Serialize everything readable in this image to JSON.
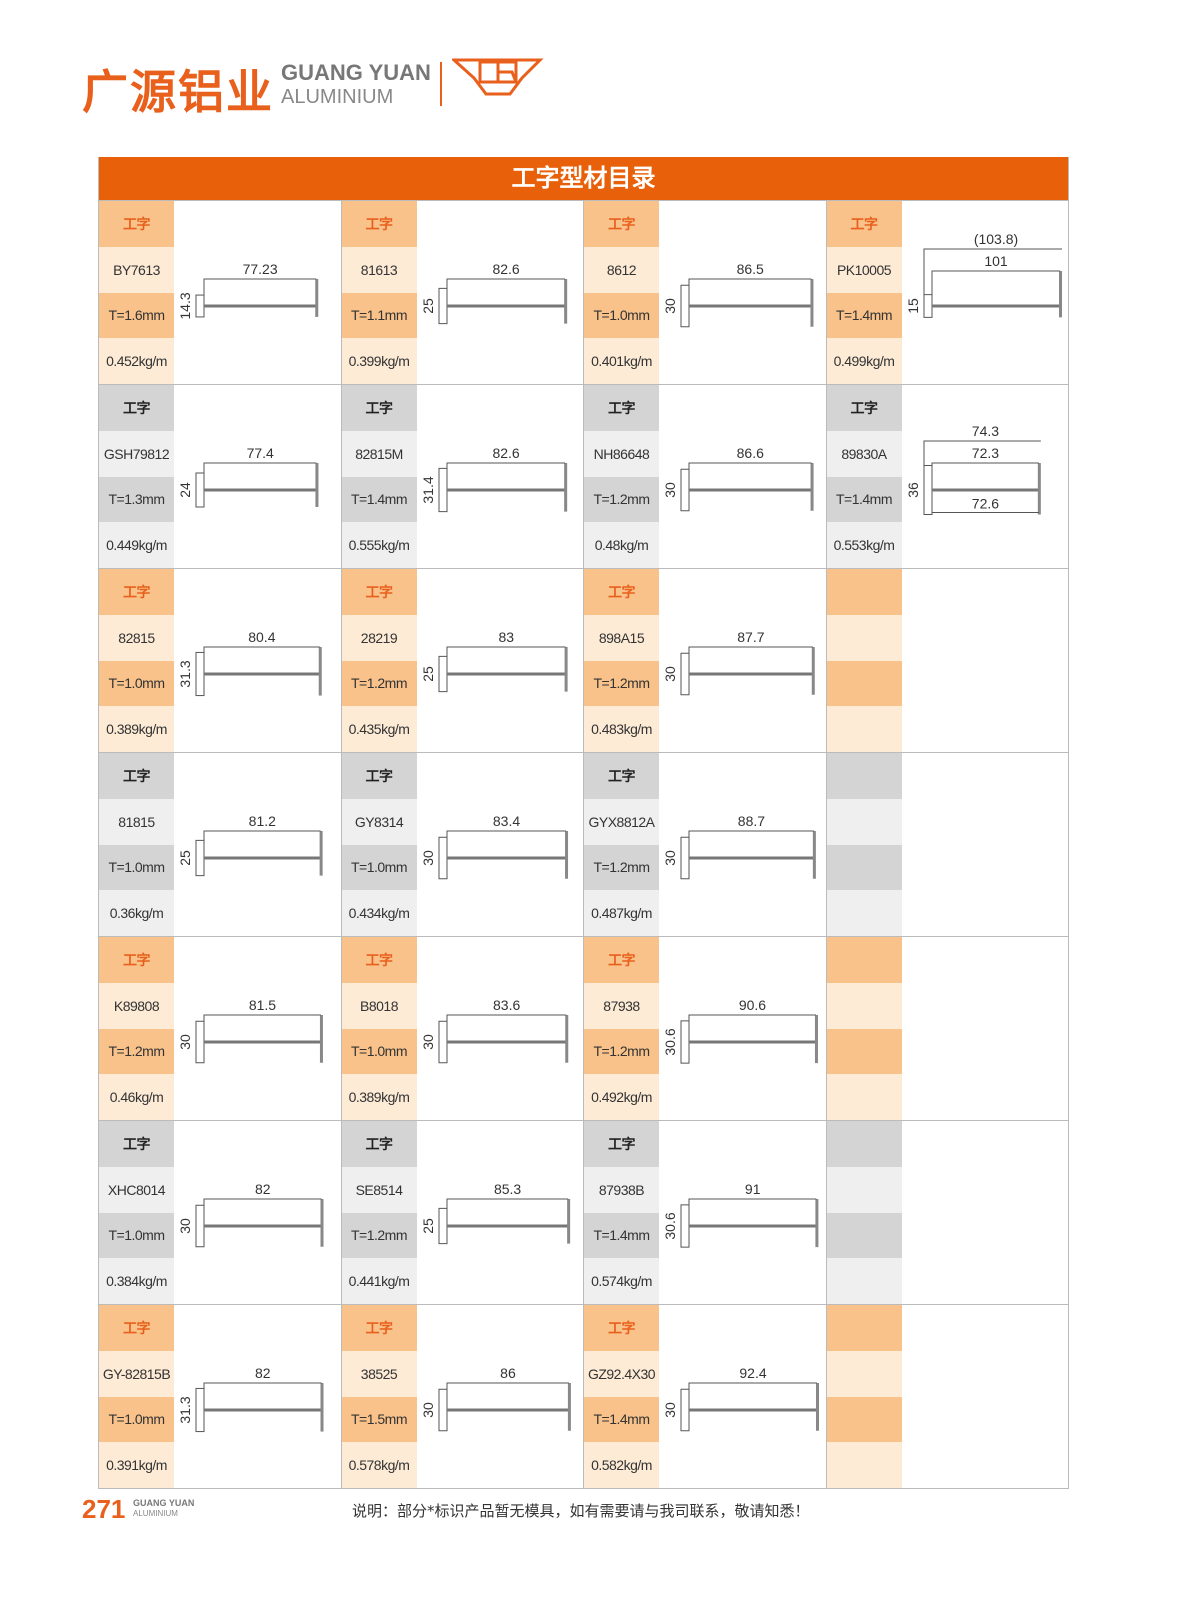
{
  "header": {
    "brand_cn": "广源铝业",
    "brand_en_line1": "GUANG YUAN",
    "brand_en_line2": "ALUMINIUM",
    "brand_mark": "GR",
    "accent_color": "#e8600a"
  },
  "catalog": {
    "title": "工字型材目录",
    "rows": [
      {
        "theme": "orange",
        "cells": [
          {
            "type": "工字",
            "code": "BY7613",
            "thickness": "T=1.6mm",
            "weight": "0.452kg/m",
            "dims": {
              "width": "77.23",
              "height": "14.3"
            }
          },
          {
            "type": "工字",
            "code": "81613",
            "thickness": "T=1.1mm",
            "weight": "0.399kg/m",
            "dims": {
              "width": "82.6",
              "height": "25"
            }
          },
          {
            "type": "工字",
            "code": "8612",
            "thickness": "T=1.0mm",
            "weight": "0.401kg/m",
            "dims": {
              "width": "86.5",
              "height": "30"
            }
          },
          {
            "type": "工字",
            "code": "PK10005",
            "thickness": "T=1.4mm",
            "weight": "0.499kg/m",
            "dims": {
              "overall": "(103.8)",
              "width": "101",
              "height": "15"
            }
          }
        ]
      },
      {
        "theme": "gray",
        "cells": [
          {
            "type": "工字",
            "code": "GSH79812",
            "thickness": "T=1.3mm",
            "weight": "0.449kg/m",
            "dims": {
              "width": "77.4",
              "height": "24"
            }
          },
          {
            "type": "工字",
            "code": "82815M",
            "thickness": "T=1.4mm",
            "weight": "0.555kg/m",
            "dims": {
              "width": "82.6",
              "height": "31.4"
            }
          },
          {
            "type": "工字",
            "code": "NH86648",
            "thickness": "T=1.2mm",
            "weight": "0.48kg/m",
            "dims": {
              "width": "86.6",
              "height": "30"
            }
          },
          {
            "type": "工字",
            "code": "89830A",
            "thickness": "T=1.4mm",
            "weight": "0.553kg/m",
            "dims": {
              "overall": "74.3",
              "width": "72.3",
              "bottom": "72.6",
              "height": "36"
            }
          }
        ]
      },
      {
        "theme": "orange",
        "cells": [
          {
            "type": "工字",
            "code": "82815",
            "thickness": "T=1.0mm",
            "weight": "0.389kg/m",
            "dims": {
              "width": "80.4",
              "height": "31.3"
            }
          },
          {
            "type": "工字",
            "code": "28219",
            "thickness": "T=1.2mm",
            "weight": "0.435kg/m",
            "dims": {
              "width": "83",
              "height": "25"
            }
          },
          {
            "type": "工字",
            "code": "898A15",
            "thickness": "T=1.2mm",
            "weight": "0.483kg/m",
            "dims": {
              "width": "87.7",
              "height": "30"
            }
          },
          null
        ]
      },
      {
        "theme": "gray",
        "cells": [
          {
            "type": "工字",
            "code": "81815",
            "thickness": "T=1.0mm",
            "weight": "0.36kg/m",
            "dims": {
              "width": "81.2",
              "height": "25"
            }
          },
          {
            "type": "工字",
            "code": "GY8314",
            "thickness": "T=1.0mm",
            "weight": "0.434kg/m",
            "dims": {
              "width": "83.4",
              "height": "30"
            }
          },
          {
            "type": "工字",
            "code": "GYX8812A",
            "thickness": "T=1.2mm",
            "weight": "0.487kg/m",
            "dims": {
              "width": "88.7",
              "height": "30"
            }
          },
          null
        ]
      },
      {
        "theme": "orange",
        "cells": [
          {
            "type": "工字",
            "code": "K89808",
            "thickness": "T=1.2mm",
            "weight": "0.46kg/m",
            "dims": {
              "width": "81.5",
              "height": "30"
            }
          },
          {
            "type": "工字",
            "code": "B8018",
            "thickness": "T=1.0mm",
            "weight": "0.389kg/m",
            "dims": {
              "width": "83.6",
              "height": "30"
            }
          },
          {
            "type": "工字",
            "code": "87938",
            "thickness": "T=1.2mm",
            "weight": "0.492kg/m",
            "dims": {
              "width": "90.6",
              "height": "30.6"
            }
          },
          null
        ]
      },
      {
        "theme": "gray",
        "cells": [
          {
            "type": "工字",
            "code": "XHC8014",
            "thickness": "T=1.0mm",
            "weight": "0.384kg/m",
            "dims": {
              "width": "82",
              "height": "30"
            }
          },
          {
            "type": "工字",
            "code": "SE8514",
            "thickness": "T=1.2mm",
            "weight": "0.441kg/m",
            "dims": {
              "width": "85.3",
              "height": "25"
            }
          },
          {
            "type": "工字",
            "code": "87938B",
            "thickness": "T=1.4mm",
            "weight": "0.574kg/m",
            "dims": {
              "width": "91",
              "height": "30.6"
            }
          },
          null
        ]
      },
      {
        "theme": "orange",
        "cells": [
          {
            "type": "工字",
            "code": "GY-82815B",
            "thickness": "T=1.0mm",
            "weight": "0.391kg/m",
            "dims": {
              "width": "82",
              "height": "31.3"
            }
          },
          {
            "type": "工字",
            "code": "38525",
            "thickness": "T=1.5mm",
            "weight": "0.578kg/m",
            "dims": {
              "width": "86",
              "height": "30"
            }
          },
          {
            "type": "工字",
            "code": "GZ92.4X30",
            "thickness": "T=1.4mm",
            "weight": "0.582kg/m",
            "dims": {
              "width": "92.4",
              "height": "30"
            }
          },
          null
        ]
      }
    ]
  },
  "footer": {
    "page_number": "271",
    "brand_line1": "GUANG YUAN",
    "brand_line2": "ALUMINIUM",
    "note": "说明：部分*标识产品暂无模具，如有需要请与我司联系，敬请知悉！"
  }
}
